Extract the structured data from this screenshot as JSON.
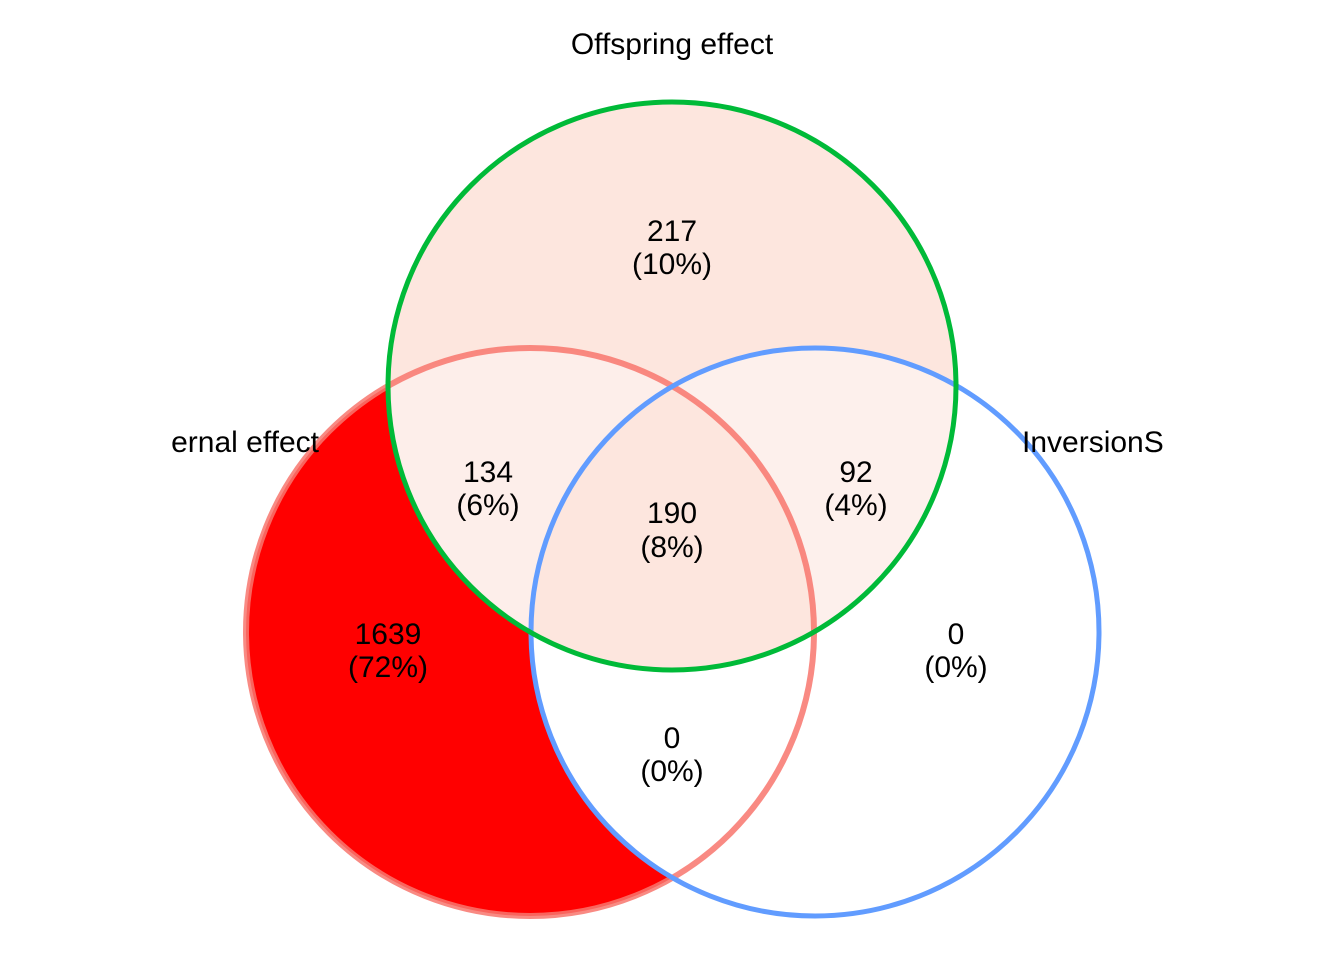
{
  "sets": {
    "maternal": {
      "label": "ernal effect",
      "stroke": "#f8766d"
    },
    "offspring": {
      "label": "Offspring effect",
      "stroke": "#00ba38"
    },
    "inversion": {
      "label": "InversionS",
      "stroke": "#619cff"
    }
  },
  "regions": {
    "maternal_only": {
      "count": "1639",
      "percent": "(72%)",
      "fill": "#ff0000"
    },
    "offspring_only": {
      "count": "217",
      "percent": "(10%)",
      "fill": "#fde6de"
    },
    "inversion_only": {
      "count": "0",
      "percent": "(0%)",
      "fill": "#ffffff"
    },
    "maternal_offspring": {
      "count": "134",
      "percent": "(6%)",
      "fill": "#fdeeea"
    },
    "offspring_inversion": {
      "count": "92",
      "percent": "(4%)",
      "fill": "#fdf0ec"
    },
    "maternal_inversion": {
      "count": "0",
      "percent": "(0%)",
      "fill": "#ffffff"
    },
    "all_three": {
      "count": "190",
      "percent": "(8%)",
      "fill": "#fde6de"
    }
  }
}
